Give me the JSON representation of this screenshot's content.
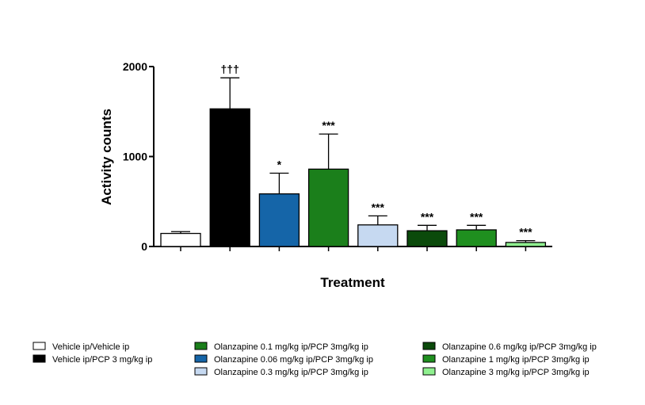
{
  "chart_data": {
    "type": "bar",
    "title": "",
    "xlabel": "Treatment",
    "ylabel": "Activity counts",
    "ylim": [
      0,
      2000
    ],
    "yticks": [
      0,
      1000,
      2000
    ],
    "grid": false,
    "legend_position": "bottom",
    "categories": [
      "Vehicle ip/Vehicle ip",
      "Vehicle ip/PCP 3 mg/kg ip",
      "Olanzapine 0.06 mg/kg ip/PCP 3mg/kg ip",
      "Olanzapine 0.1 mg/kg ip/PCP 3mg/kg ip",
      "Olanzapine 0.3 mg/kg ip/PCP 3mg/kg ip",
      "Olanzapine 0.6 mg/kg ip/PCP 3mg/kg ip",
      "Olanzapine 1 mg/kg ip/PCP 3mg/kg ip",
      "Olanzapine 3 mg/kg ip/PCP 3mg/kg ip"
    ],
    "values": [
      145,
      1530,
      585,
      860,
      240,
      175,
      185,
      45
    ],
    "errors": [
      20,
      345,
      230,
      390,
      100,
      60,
      50,
      20
    ],
    "significance": [
      "",
      "†††",
      "*",
      "***",
      "***",
      "***",
      "***",
      "***"
    ],
    "colors": [
      "#ffffff",
      "#000000",
      "#1565a8",
      "#1b7f1b",
      "#c6d9f1",
      "#0b4a0b",
      "#1f8f1f",
      "#8ff08f"
    ],
    "legend_columns": [
      [
        0,
        1
      ],
      [
        3,
        2,
        4
      ],
      [
        5,
        6,
        7
      ]
    ]
  }
}
